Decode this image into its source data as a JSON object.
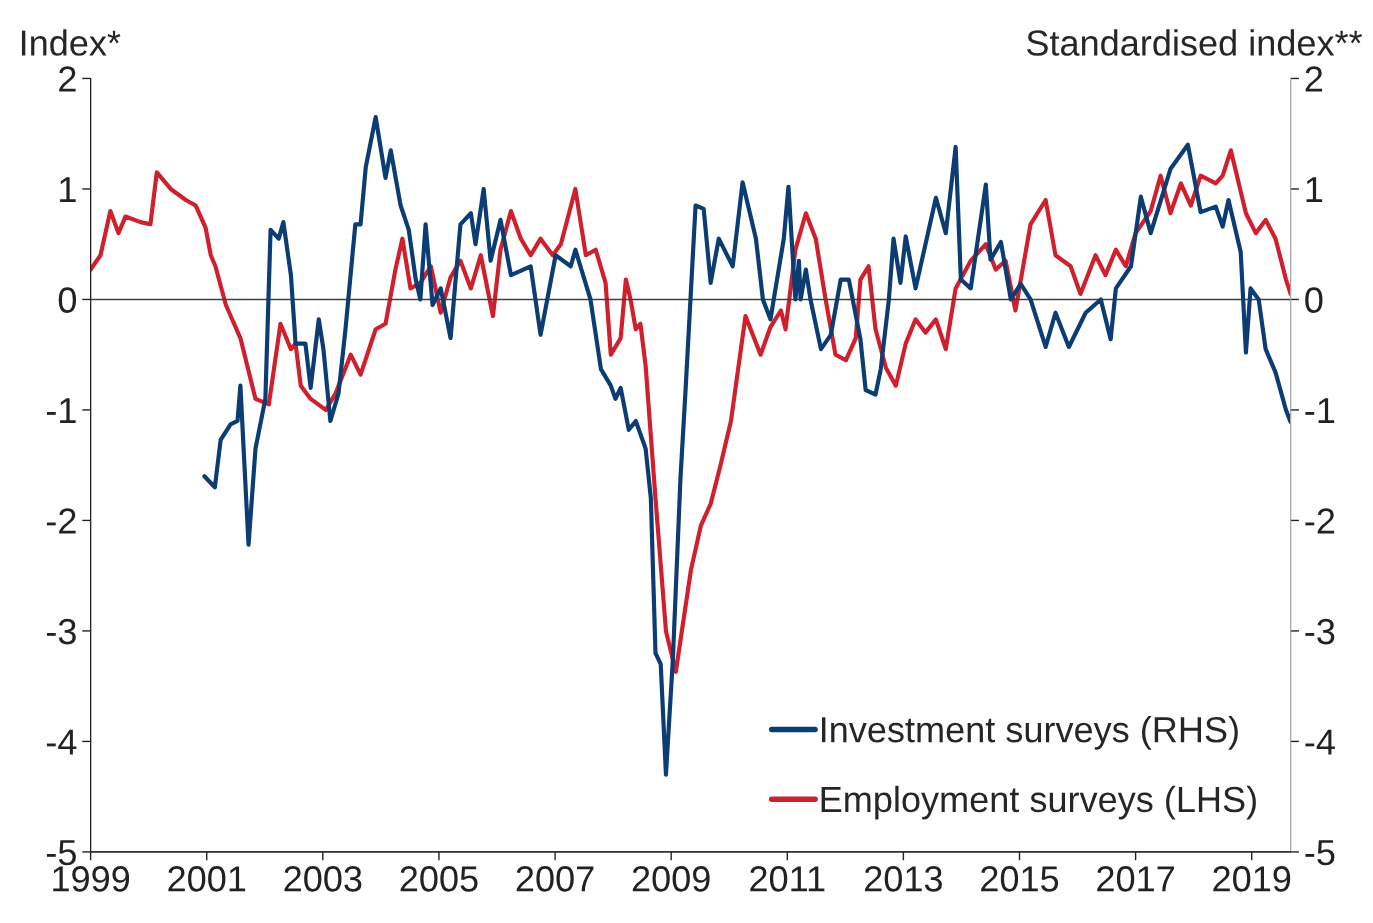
{
  "chart_data": {
    "type": "line",
    "ylabel": "Index*",
    "y2label": "Standardised index**",
    "xlim": [
      1999,
      2019.67
    ],
    "xticks": [
      1999,
      2001,
      2003,
      2005,
      2007,
      2009,
      2011,
      2013,
      2015,
      2017,
      2019
    ],
    "ylim": [
      -5,
      2
    ],
    "yticks": [
      -5,
      -4,
      -3,
      -2,
      -1,
      0,
      1,
      2
    ],
    "y2lim": [
      -5,
      2
    ],
    "y2ticks": [
      -5,
      -4,
      -3,
      -2,
      -1,
      0,
      1,
      2
    ],
    "ref_lines": [
      {
        "axis": "y",
        "value": 0,
        "color": "#404040"
      }
    ],
    "legend": "bottom right",
    "grid": false,
    "marker": "none",
    "line_style": "solid",
    "series": [
      {
        "name": "Investment surveys (RHS)",
        "color": "#0b3c73",
        "axis": "y2",
        "x": [
          2000.96,
          2001.14,
          2001.24,
          2001.41,
          2001.53,
          2001.58,
          2001.72,
          2001.84,
          2002.01,
          2002.1,
          2002.24,
          2002.32,
          2002.45,
          2002.53,
          2002.7,
          2002.79,
          2002.93,
          2003.01,
          2003.13,
          2003.27,
          2003.39,
          2003.56,
          2003.65,
          2003.74,
          2003.91,
          2004.08,
          2004.17,
          2004.34,
          2004.48,
          2004.6,
          2004.68,
          2004.77,
          2004.89,
          2005.03,
          2005.2,
          2005.37,
          2005.55,
          2005.63,
          2005.77,
          2005.89,
          2006.06,
          2006.24,
          2006.58,
          2006.75,
          2007.01,
          2007.27,
          2007.35,
          2007.61,
          2007.79,
          2007.96,
          2008.04,
          2008.13,
          2008.27,
          2008.39,
          2008.56,
          2008.65,
          2008.73,
          2008.82,
          2008.91,
          2009.03,
          2009.16,
          2009.25,
          2009.42,
          2009.56,
          2009.68,
          2009.82,
          2010.06,
          2010.23,
          2010.46,
          2010.58,
          2010.71,
          2010.94,
          2011.02,
          2011.14,
          2011.2,
          2011.23,
          2011.32,
          2011.4,
          2011.58,
          2011.75,
          2011.92,
          2012.06,
          2012.26,
          2012.35,
          2012.52,
          2012.61,
          2012.75,
          2012.83,
          2012.95,
          2013.04,
          2013.21,
          2013.56,
          2013.73,
          2013.9,
          2013.99,
          2014.16,
          2014.42,
          2014.5,
          2014.68,
          2014.85,
          2015.02,
          2015.19,
          2015.45,
          2015.62,
          2015.85,
          2016.14,
          2016.4,
          2016.57,
          2016.66,
          2016.92,
          2017.09,
          2017.26,
          2017.6,
          2017.9,
          2018.12,
          2018.38,
          2018.5,
          2018.6,
          2018.81,
          2018.9,
          2018.98,
          2019.12,
          2019.24,
          2019.41,
          2019.59,
          2019.67
        ],
        "values": [
          -1.6,
          -1.7,
          -1.27,
          -1.13,
          -1.1,
          -0.78,
          -2.22,
          -1.35,
          -0.9,
          0.63,
          0.55,
          0.7,
          0.22,
          -0.4,
          -0.4,
          -0.8,
          -0.18,
          -0.45,
          -1.1,
          -0.85,
          -0.27,
          0.68,
          0.68,
          1.2,
          1.65,
          1.1,
          1.35,
          0.85,
          0.63,
          0.18,
          0,
          0.68,
          -0.05,
          0.1,
          -0.35,
          0.68,
          0.78,
          0.5,
          1.0,
          0.35,
          0.72,
          0.22,
          0.3,
          -0.32,
          0.4,
          0.3,
          0.45,
          0,
          -0.63,
          -0.78,
          -0.9,
          -0.8,
          -1.18,
          -1.1,
          -1.35,
          -1.8,
          -3.2,
          -3.3,
          -4.3,
          -3.25,
          -1.62,
          -0.8,
          0.85,
          0.82,
          0.15,
          0.55,
          0.3,
          1.06,
          0.55,
          0,
          -0.18,
          0.55,
          1.02,
          0,
          0.35,
          0,
          0.27,
          0,
          -0.45,
          -0.32,
          0.18,
          0.18,
          -0.36,
          -0.82,
          -0.86,
          -0.63,
          0,
          0.55,
          0.15,
          0.57,
          0.1,
          0.92,
          0.6,
          1.38,
          0.18,
          0.1,
          1.04,
          0.36,
          0.52,
          0,
          0.14,
          0,
          -0.43,
          -0.12,
          -0.43,
          -0.12,
          0,
          -0.36,
          0.1,
          0.3,
          0.93,
          0.6,
          1.18,
          1.4,
          0.79,
          0.84,
          0.66,
          0.9,
          0.43,
          -0.48,
          0.1,
          0,
          -0.45,
          -0.66,
          -1.0,
          -1.11
        ]
      },
      {
        "name": "Employment surveys (LHS)",
        "color": "#d0202e",
        "axis": "y",
        "x": [
          1999.0,
          1999.17,
          1999.34,
          1999.48,
          1999.6,
          1999.86,
          2000.03,
          2000.14,
          2000.38,
          2000.64,
          2000.81,
          2000.98,
          2001.07,
          2001.15,
          2001.33,
          2001.58,
          2001.84,
          2002.07,
          2002.27,
          2002.45,
          2002.53,
          2002.62,
          2002.79,
          2003.05,
          2003.22,
          2003.48,
          2003.65,
          2003.91,
          2004.08,
          2004.25,
          2004.37,
          2004.51,
          2004.68,
          2004.86,
          2005.03,
          2005.2,
          2005.37,
          2005.55,
          2005.72,
          2005.93,
          2006.06,
          2006.24,
          2006.41,
          2006.58,
          2006.75,
          2006.96,
          2007.1,
          2007.35,
          2007.53,
          2007.7,
          2007.87,
          2007.96,
          2008.13,
          2008.22,
          2008.3,
          2008.39,
          2008.47,
          2008.56,
          2008.73,
          2008.91,
          2009.08,
          2009.34,
          2009.51,
          2009.68,
          2009.85,
          2010.03,
          2010.28,
          2010.54,
          2010.71,
          2010.89,
          2010.97,
          2011.14,
          2011.32,
          2011.49,
          2011.66,
          2011.83,
          2012.01,
          2012.18,
          2012.26,
          2012.4,
          2012.52,
          2012.7,
          2012.87,
          2013.04,
          2013.21,
          2013.38,
          2013.56,
          2013.73,
          2013.9,
          2014.16,
          2014.42,
          2014.59,
          2014.76,
          2014.93,
          2015.19,
          2015.45,
          2015.62,
          2015.88,
          2016.05,
          2016.31,
          2016.48,
          2016.66,
          2016.83,
          2017.0,
          2017.26,
          2017.43,
          2017.6,
          2017.78,
          2017.95,
          2018.12,
          2018.38,
          2018.5,
          2018.64,
          2018.9,
          2019.07,
          2019.24,
          2019.41,
          2019.59,
          2019.67
        ],
        "values": [
          0.27,
          0.4,
          0.8,
          0.6,
          0.75,
          0.7,
          0.68,
          1.15,
          1.0,
          0.9,
          0.85,
          0.65,
          0.4,
          0.3,
          -0.05,
          -0.35,
          -0.9,
          -0.95,
          -0.22,
          -0.45,
          -0.4,
          -0.78,
          -0.9,
          -1.0,
          -0.85,
          -0.5,
          -0.68,
          -0.27,
          -0.22,
          0.27,
          0.55,
          0.1,
          0.15,
          0.3,
          -0.12,
          0.2,
          0.35,
          0.1,
          0.4,
          -0.15,
          0.45,
          0.8,
          0.55,
          0.4,
          0.55,
          0.4,
          0.5,
          1.0,
          0.4,
          0.45,
          0.15,
          -0.5,
          -0.35,
          0.18,
          0,
          -0.27,
          -0.22,
          -0.6,
          -1.8,
          -3.0,
          -3.37,
          -2.45,
          -2.05,
          -1.85,
          -1.5,
          -1.1,
          -0.15,
          -0.5,
          -0.25,
          -0.1,
          -0.27,
          0.45,
          0.78,
          0.55,
          0,
          -0.5,
          -0.55,
          -0.35,
          0.18,
          0.3,
          -0.27,
          -0.62,
          -0.78,
          -0.4,
          -0.18,
          -0.3,
          -0.18,
          -0.45,
          0.1,
          0.35,
          0.5,
          0.27,
          0.35,
          -0.1,
          0.68,
          0.9,
          0.4,
          0.3,
          0.05,
          0.4,
          0.22,
          0.45,
          0.3,
          0.6,
          0.8,
          1.12,
          0.78,
          1.05,
          0.85,
          1.12,
          1.05,
          1.12,
          1.35,
          0.78,
          0.6,
          0.72,
          0.55,
          0.18,
          0.05
        ]
      }
    ]
  }
}
